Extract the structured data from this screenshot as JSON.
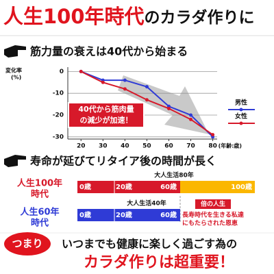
{
  "header": {
    "title_red": "人生100年時代",
    "title_black": "のカラダ作りに"
  },
  "chart_data": {
    "type": "line",
    "heading": "筋力量の衰えは40代から始まる",
    "ylabel": [
      "変化率",
      "(%)"
    ],
    "x_unit": "(年齢:歳)",
    "x": [
      20,
      30,
      40,
      50,
      60,
      70,
      80
    ],
    "xlim": [
      14,
      82
    ],
    "xticks": [
      20,
      30,
      40,
      50,
      60,
      70,
      80
    ],
    "ylim": [
      -31,
      2
    ],
    "yticks": [
      0,
      -10,
      -20,
      -30
    ],
    "grid": true,
    "series": [
      {
        "name": "男性",
        "color": "#2f3bd6",
        "values": [
          0,
          -4,
          -4,
          -7,
          -16,
          -20,
          -30
        ]
      },
      {
        "name": "女性",
        "color": "#d7192a",
        "values": [
          0,
          -5,
          -8,
          -13,
          -17,
          -22,
          -29
        ]
      }
    ],
    "annotation": [
      "40代から筋肉量",
      "の減少が加速！"
    ]
  },
  "section2": {
    "heading": "寿命が延びてリタイア後の時間が長く",
    "rows": [
      {
        "label": [
          "人生100年",
          "時代"
        ],
        "span": "大人生活80年",
        "ages": [
          "0歳",
          "20歳",
          "60歳",
          "100歳"
        ]
      },
      {
        "label": [
          "人生60年",
          "時代"
        ],
        "span": "大人生活40年",
        "ages": [
          "0歳",
          "20歳",
          "60歳"
        ]
      }
    ],
    "badge": "倍の人生",
    "note": [
      "長寿時代を生きる私達",
      "にもたらされた恩恵"
    ]
  },
  "footer": {
    "tag": "つまり",
    "line1": "いつまでも健康に楽しく過ごす為の",
    "line2": "カラダ作りは超重要！"
  }
}
